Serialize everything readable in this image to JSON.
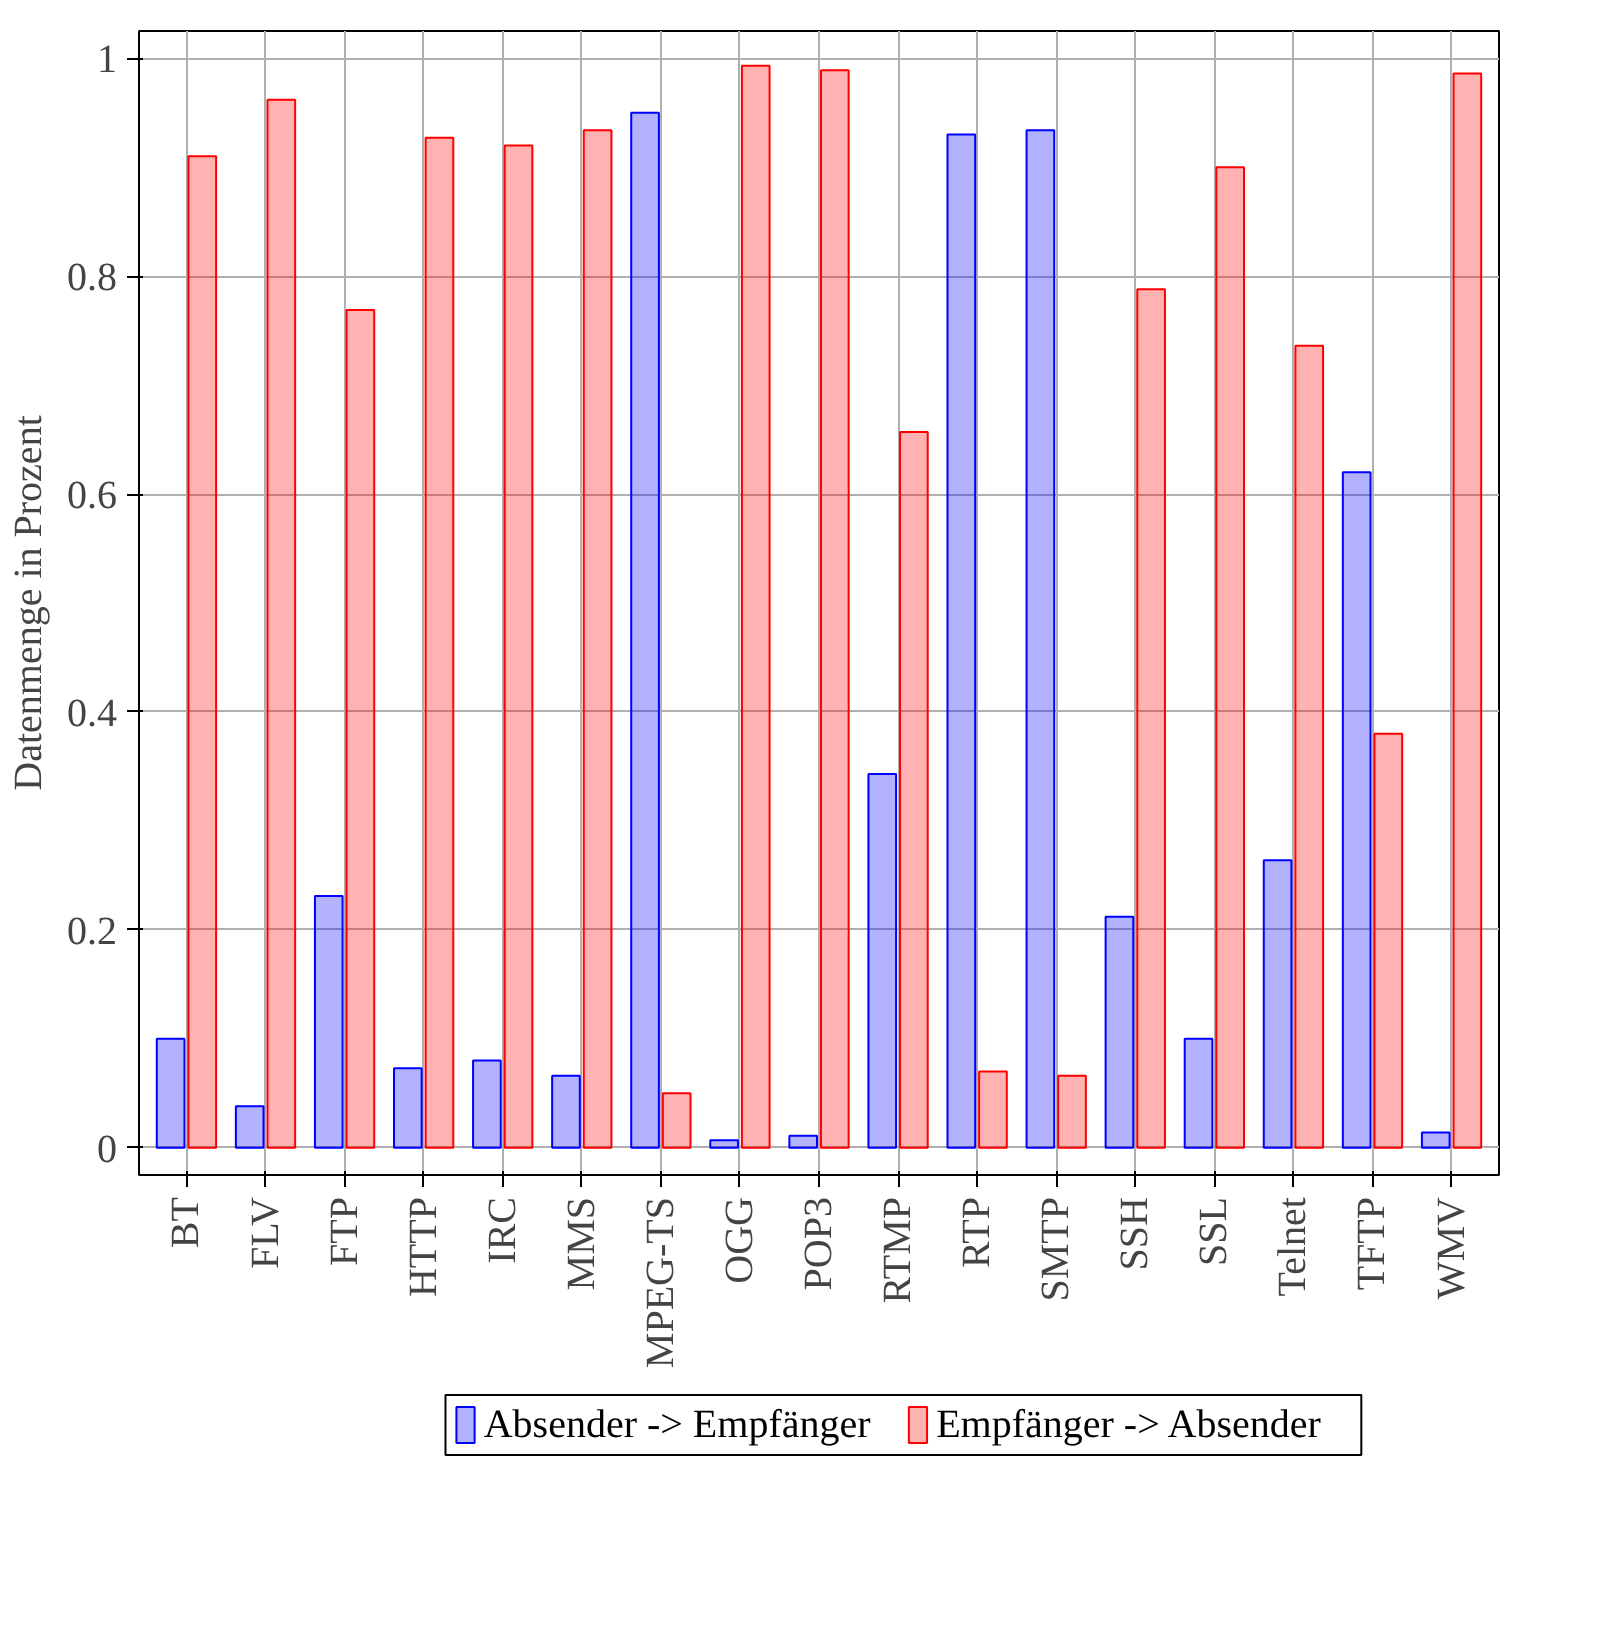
{
  "chart_data": {
    "type": "bar",
    "ylabel": "Datenmenge in Prozent",
    "categories": [
      "BT",
      "FLV",
      "FTP",
      "HTTP",
      "IRC",
      "MMS",
      "MPEG-TS",
      "OGG",
      "POP3",
      "RTMP",
      "RTP",
      "SMTP",
      "SSH",
      "SSL",
      "Telnet",
      "TFTP",
      "WMV"
    ],
    "series": [
      {
        "name": "Absender -> Empfänger",
        "color": "#0000ff",
        "values": [
          0.1,
          0.038,
          0.231,
          0.073,
          0.08,
          0.066,
          0.95,
          0.007,
          0.011,
          0.343,
          0.93,
          0.934,
          0.212,
          0.1,
          0.264,
          0.62,
          0.014
        ]
      },
      {
        "name": "Empfänger -> Absender",
        "color": "#ff0000",
        "values": [
          0.91,
          0.962,
          0.769,
          0.927,
          0.92,
          0.934,
          0.05,
          0.993,
          0.989,
          0.657,
          0.07,
          0.066,
          0.788,
          0.9,
          0.736,
          0.38,
          0.986
        ]
      }
    ],
    "ylim": [
      -0.025,
      1.025
    ],
    "yticks": [
      0,
      0.2,
      0.4,
      0.6,
      0.8,
      1
    ],
    "grid": true,
    "legend": "bottom"
  }
}
